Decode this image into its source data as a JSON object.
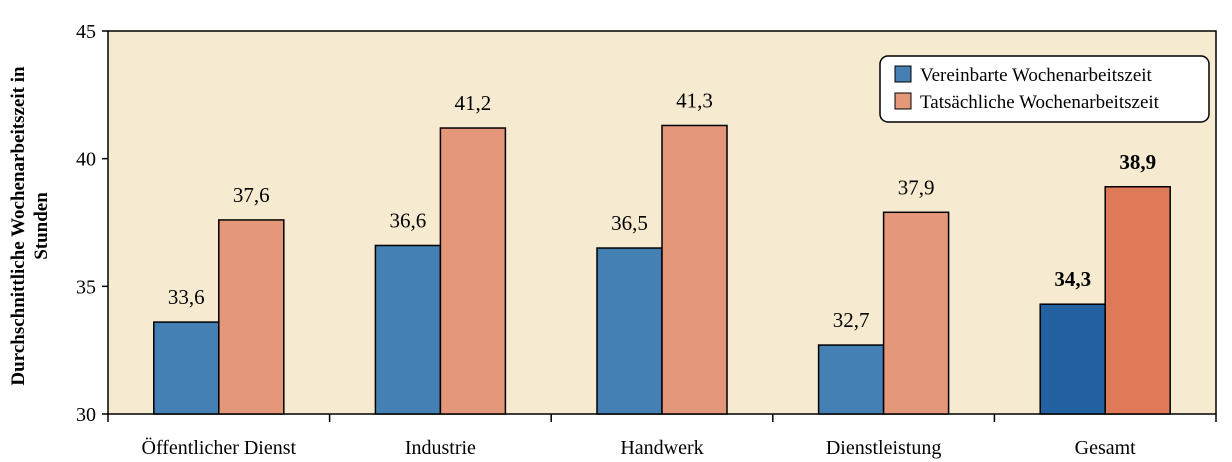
{
  "chart_data": {
    "type": "bar",
    "title": "",
    "ylabel_lines": [
      "Durchschnittliche Wochenarbeitszeit in",
      "Stunden"
    ],
    "xlabel": "",
    "categories": [
      "Öffentlicher Dienst",
      "Industrie",
      "Handwerk",
      "Dienstleistung",
      "Gesamt"
    ],
    "series": [
      {
        "name": "Vereinbarte Wochenarbeitszeit",
        "values": [
          33.6,
          36.6,
          36.5,
          32.7,
          34.3
        ],
        "labels": [
          "33,6",
          "36,6",
          "36,5",
          "32,7",
          "34,3"
        ],
        "color": "#4480b3",
        "highlight_color": "#2461a0"
      },
      {
        "name": "Tatsächliche Wochenarbeitszeit",
        "values": [
          37.6,
          41.2,
          41.3,
          37.9,
          38.9
        ],
        "labels": [
          "37,6",
          "41,2",
          "41,3",
          "37,9",
          "38,9"
        ],
        "color": "#e5977a",
        "highlight_color": "#de7a58"
      }
    ],
    "highlight_category": "Gesamt",
    "ylim": [
      30,
      45
    ],
    "yticks": [
      "30",
      "35",
      "40",
      "45"
    ],
    "grid": false,
    "legend_position": "top-right",
    "plot_background": "#f6ebd1"
  }
}
